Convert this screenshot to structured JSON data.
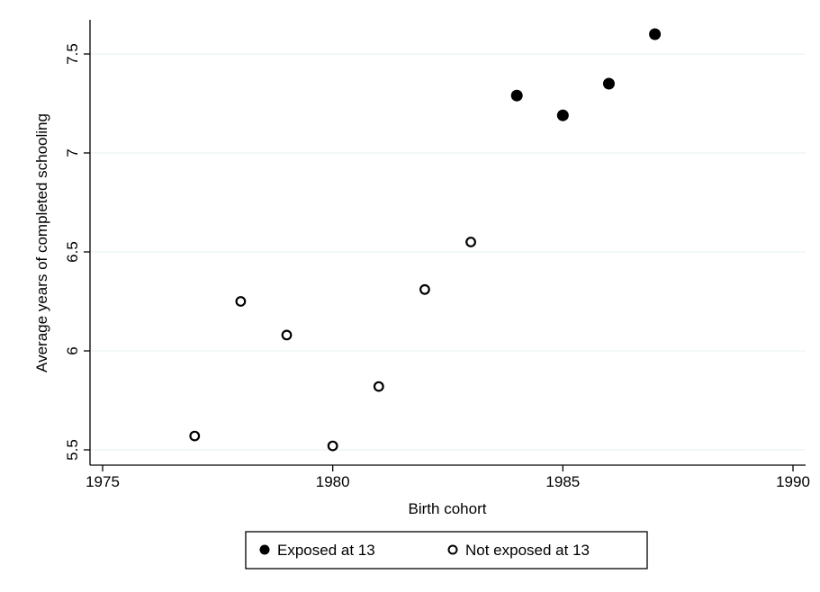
{
  "chart_data": {
    "type": "scatter",
    "title": "",
    "xlabel": "Birth cohort",
    "ylabel": "Average years of completed schooling",
    "xlim": [
      1975,
      1990
    ],
    "ylim": [
      5.5,
      7.6
    ],
    "x_ticks": [
      "1975",
      "1980",
      "1985",
      "1990"
    ],
    "y_ticks": [
      "5.5",
      "6",
      "6.5",
      "7",
      "7.5"
    ],
    "grid": "horizontal",
    "legend_position": "bottom",
    "series": [
      {
        "name": "Exposed at 13",
        "marker": "filled-circle",
        "color": "#000000",
        "x": [
          1984,
          1985,
          1986,
          1987
        ],
        "y": [
          7.29,
          7.19,
          7.35,
          7.6
        ]
      },
      {
        "name": "Not exposed at 13",
        "marker": "hollow-circle",
        "color": "#000000",
        "x": [
          1977,
          1978,
          1979,
          1980,
          1981,
          1982,
          1983
        ],
        "y": [
          5.57,
          6.25,
          6.08,
          5.52,
          5.82,
          6.31,
          6.55
        ]
      }
    ]
  }
}
